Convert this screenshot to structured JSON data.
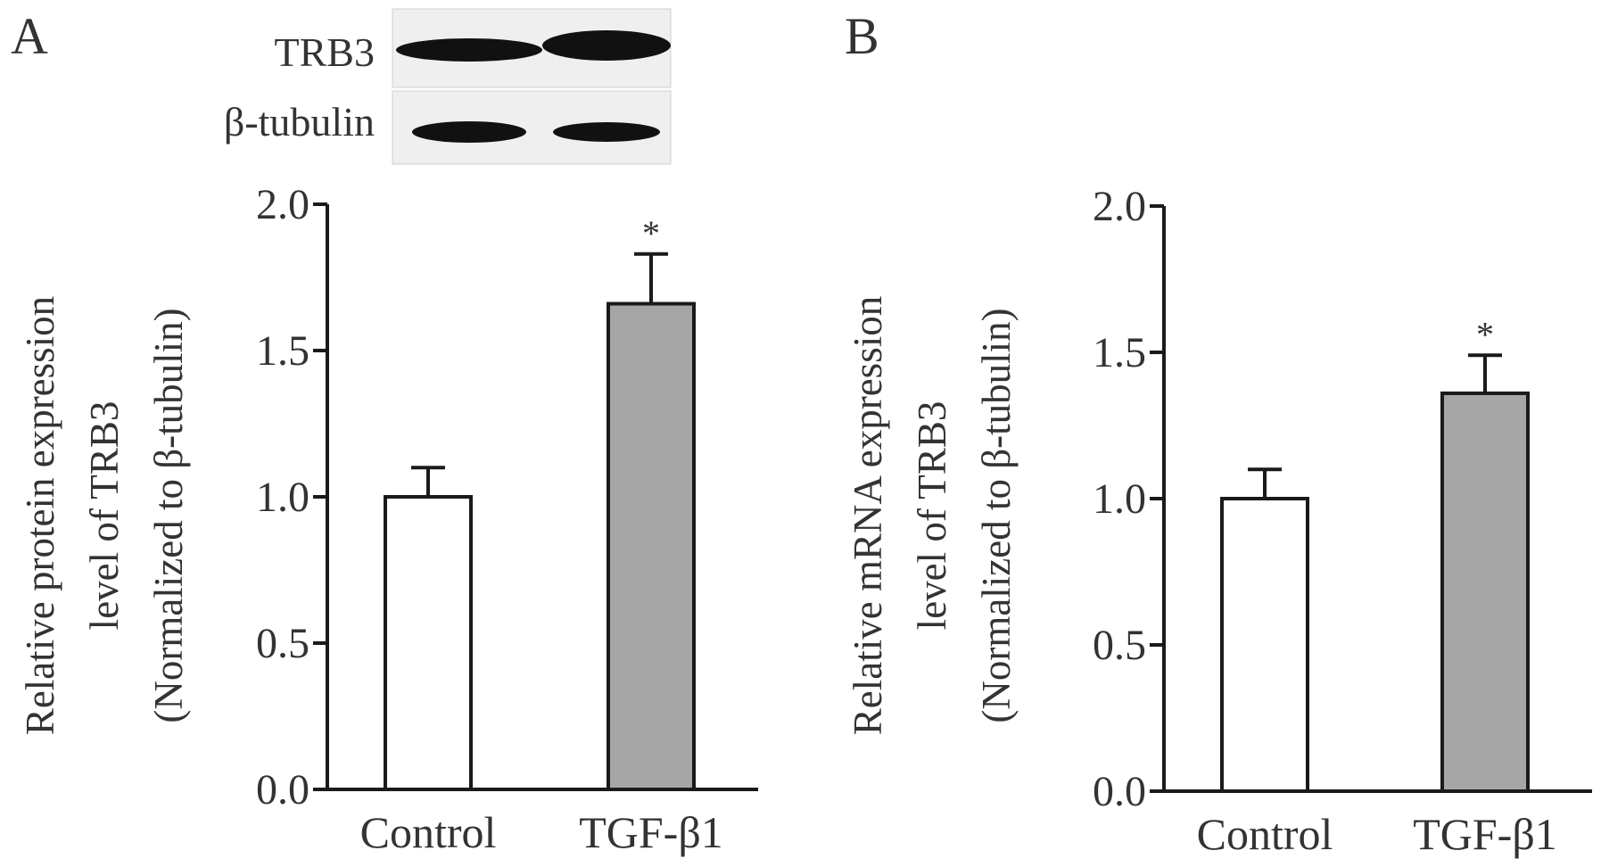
{
  "figure": {
    "panels": [
      {
        "label": "A",
        "blot": {
          "rows": [
            {
              "label": "TRB3"
            },
            {
              "label": "β-tubulin"
            }
          ]
        }
      },
      {
        "label": "B"
      }
    ]
  },
  "colors": {
    "control_fill": "#ffffff",
    "tgf_fill": "#a6a6a6",
    "stroke": "#1a1a1a",
    "blot_background": "#efefef",
    "band": "#111111"
  },
  "chart_data": [
    {
      "type": "bar",
      "panel": "A",
      "categories": [
        "Control",
        "TGF-β1"
      ],
      "values": [
        1.0,
        1.66
      ],
      "errors": [
        0.1,
        0.17
      ],
      "significance": [
        "",
        "*"
      ],
      "ylabel_lines": [
        "Relative protein expression",
        "level of TRB3",
        "(Normalized to β-tubulin)"
      ],
      "ylim": [
        0,
        2.0
      ],
      "yticks": [
        "0.0",
        "0.5",
        "1.0",
        "1.5",
        "2.0"
      ],
      "grid": false,
      "legend": "none"
    },
    {
      "type": "bar",
      "panel": "B",
      "categories": [
        "Control",
        "TGF-β1"
      ],
      "values": [
        1.0,
        1.36
      ],
      "errors": [
        0.1,
        0.13
      ],
      "significance": [
        "",
        "*"
      ],
      "ylabel_lines": [
        "Relative mRNA expression",
        "level of TRB3",
        "(Normalized to β-tubulin)"
      ],
      "ylim": [
        0,
        2.0
      ],
      "yticks": [
        "0.0",
        "0.5",
        "1.0",
        "1.5",
        "2.0"
      ],
      "grid": false,
      "legend": "none"
    }
  ]
}
